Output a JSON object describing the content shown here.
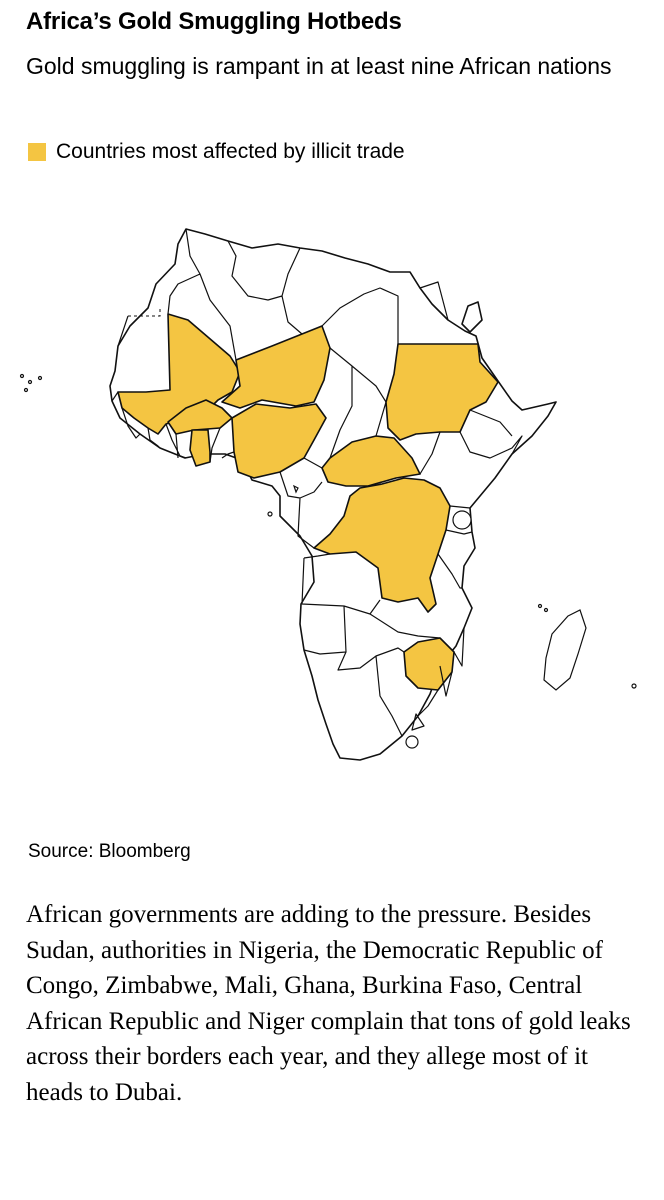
{
  "article": {
    "title": "Africa’s Gold Smuggling Hotbeds",
    "subtitle": "Gold smuggling is rampant in at least nine African nations",
    "source": "Source: Bloomberg",
    "body": "African governments are adding to the pressure. Besides Sudan, authorities in Nigeria, the Democratic Republic of Congo, Zimbabwe, Mali, Ghana, Burkina Faso, Central African Republic and Niger complain that tons of gold leaks across their borders each year, and they allege most of it heads to Dubai."
  },
  "legend": {
    "label": "Countries most affected by illicit trade",
    "color": "#F4C542"
  },
  "colors": {
    "highlight": "#F4C542",
    "land": "#FFFFFF",
    "border": "#111111"
  },
  "map": {
    "highlighted_countries": [
      "Mali",
      "Niger",
      "Burkina Faso",
      "Ghana",
      "Nigeria",
      "Sudan",
      "Central African Republic",
      "Democratic Republic of Congo",
      "Zimbabwe"
    ]
  }
}
